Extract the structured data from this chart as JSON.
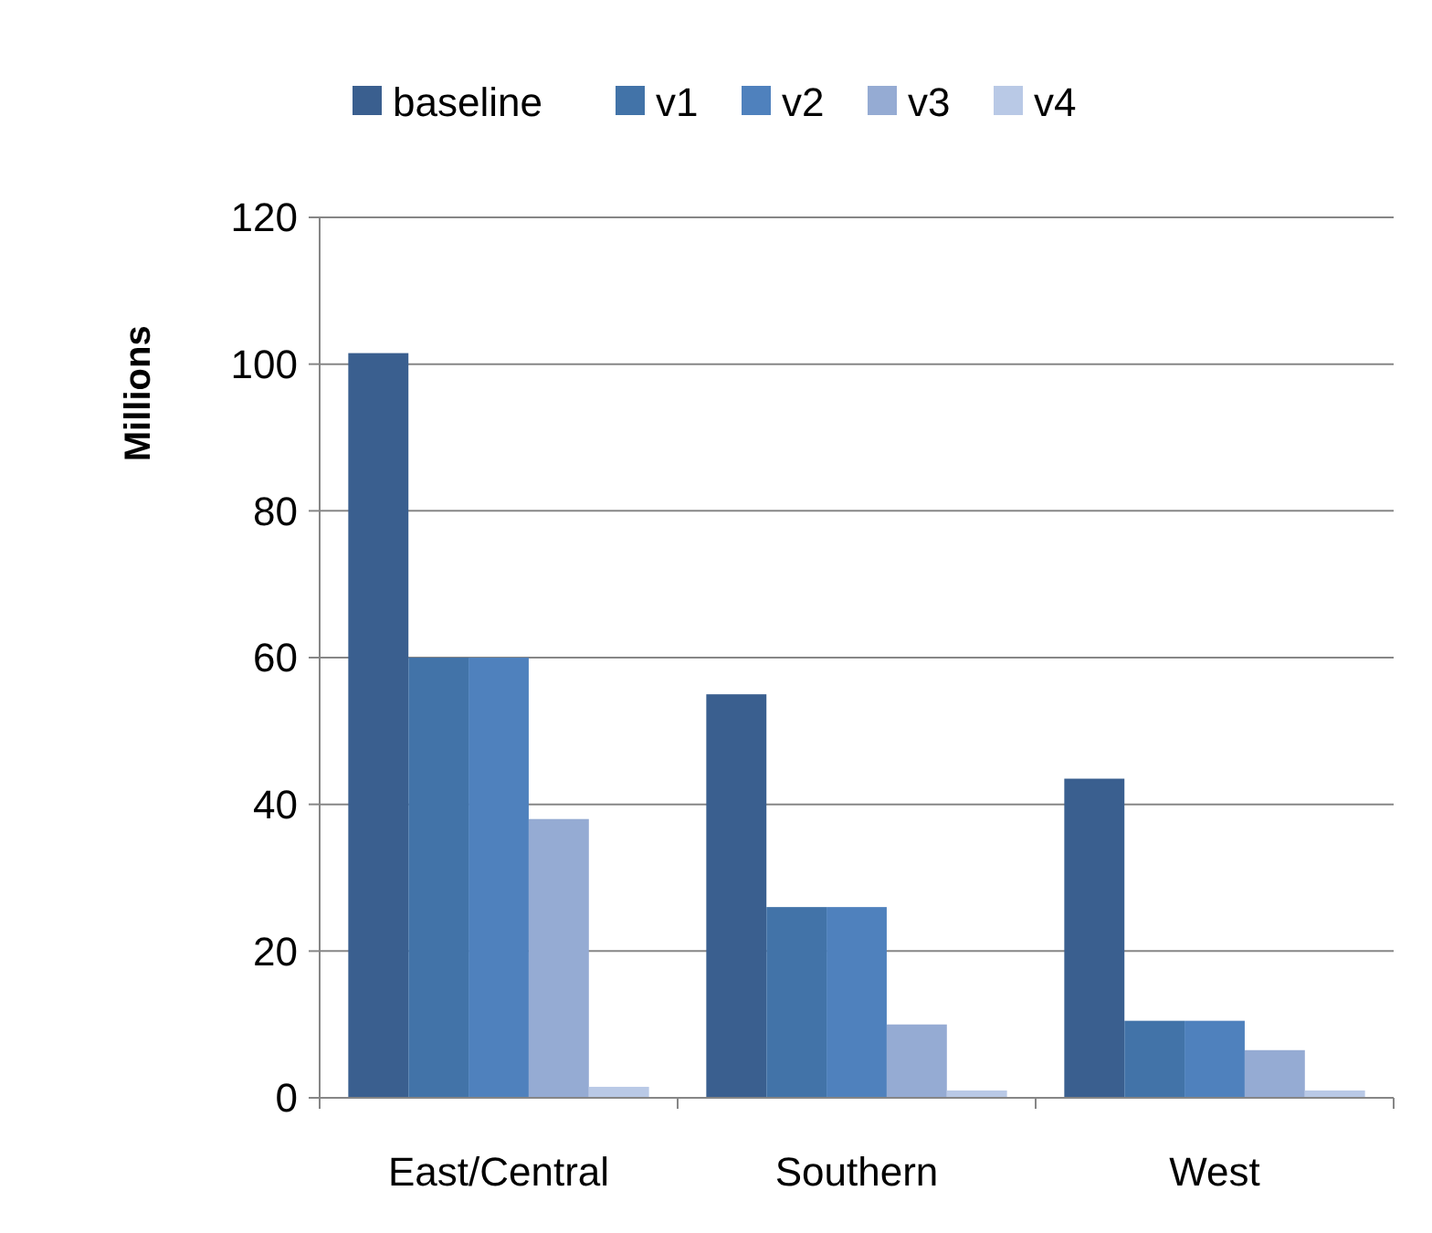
{
  "chart_data": {
    "type": "bar",
    "ylabel": "Millions",
    "categories": [
      "East/Central",
      "Southern",
      "West"
    ],
    "series": [
      {
        "name": "baseline",
        "color": "#3a5f8f",
        "values": [
          101.5,
          55,
          43.5
        ]
      },
      {
        "name": "v1",
        "color": "#4273a8",
        "values": [
          60,
          26,
          10.5
        ]
      },
      {
        "name": "v2",
        "color": "#4f81bd",
        "values": [
          60,
          26,
          10.5
        ]
      },
      {
        "name": "v3",
        "color": "#95abd3",
        "values": [
          38,
          10,
          6.5
        ]
      },
      {
        "name": "v4",
        "color": "#b9c9e6",
        "values": [
          1.5,
          1,
          1
        ]
      }
    ],
    "ylim": [
      0,
      120
    ],
    "yticks": [
      0,
      20,
      40,
      60,
      80,
      100,
      120
    ],
    "grid": "y",
    "legend": "top"
  }
}
